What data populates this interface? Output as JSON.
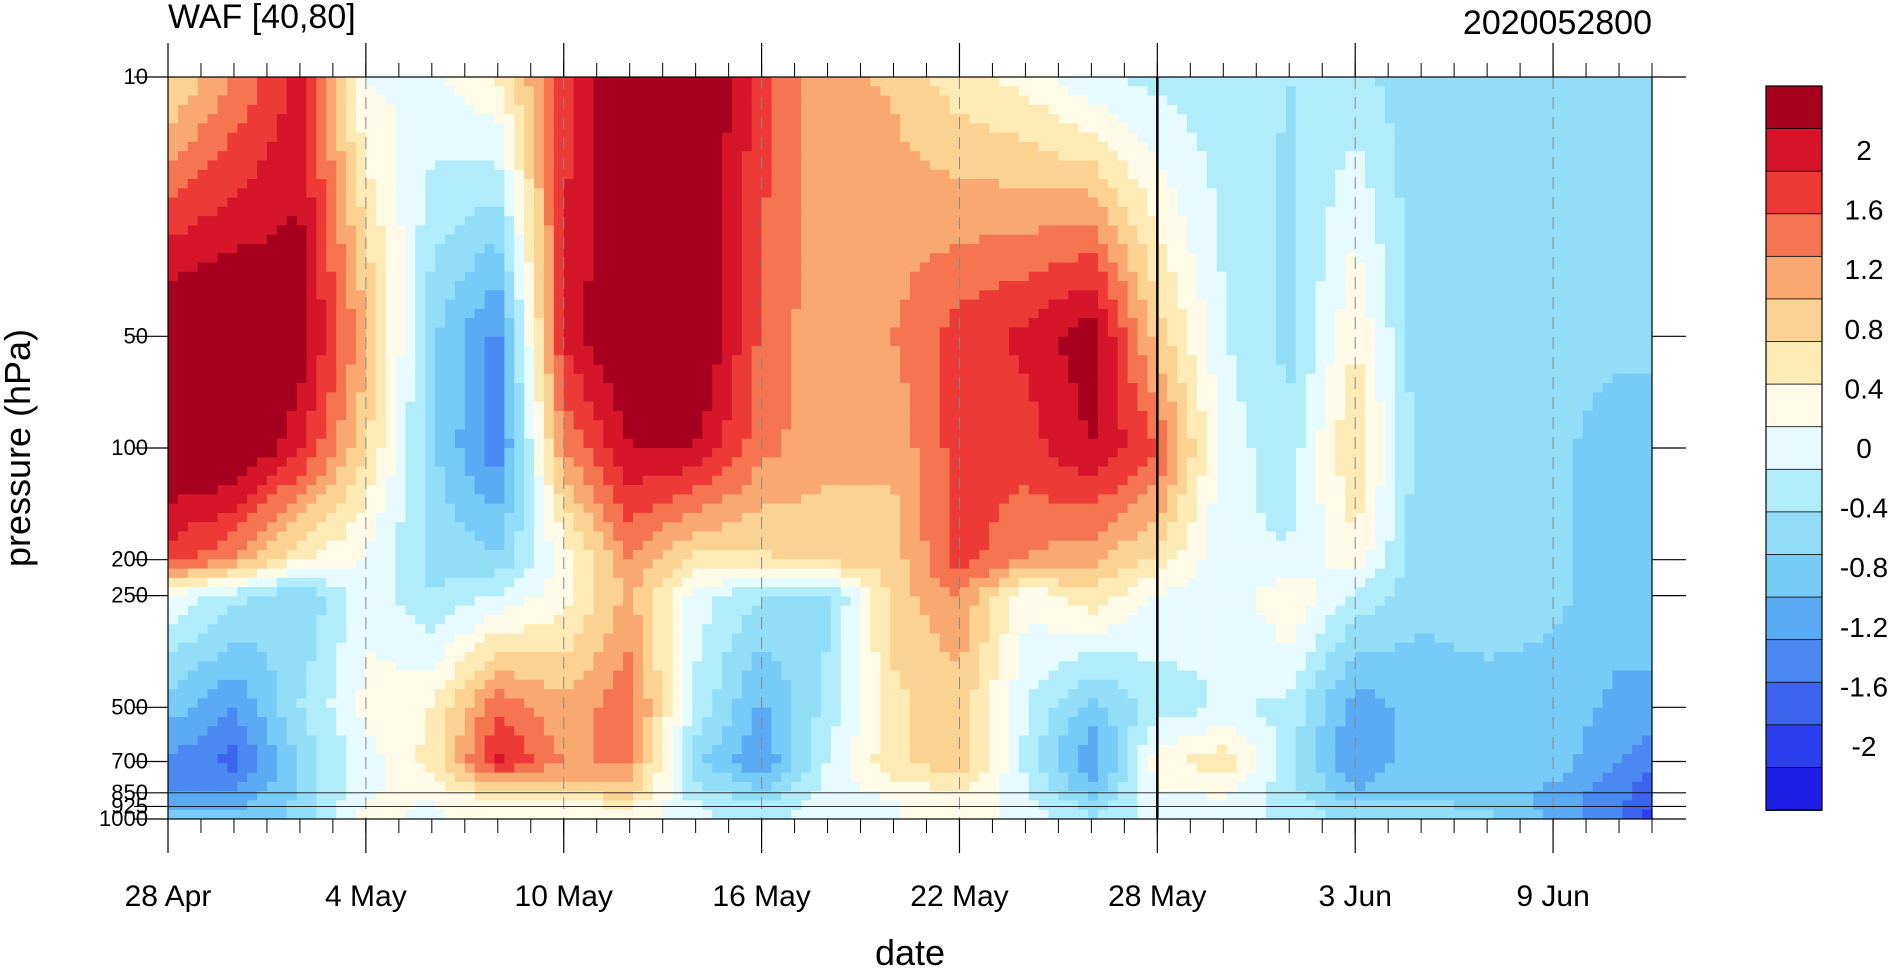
{
  "chart_data": {
    "type": "heatmap",
    "title": "WAF [40,80]",
    "subtitle": "2020052800",
    "xlabel": "date",
    "ylabel": "pressure (hPa)",
    "y_scale": "log",
    "y_reversed": true,
    "x_range": [
      "2020-04-28",
      "2020-06-12"
    ],
    "y_range": [
      1000,
      10
    ],
    "x_ticks": [
      {
        "date": "2020-04-28",
        "label": "28 Apr"
      },
      {
        "date": "2020-05-04",
        "label": "4 May"
      },
      {
        "date": "2020-05-10",
        "label": "10 May"
      },
      {
        "date": "2020-05-16",
        "label": "16 May"
      },
      {
        "date": "2020-05-22",
        "label": "22 May"
      },
      {
        "date": "2020-05-28",
        "label": "28 May"
      },
      {
        "date": "2020-06-03",
        "label": "3 Jun"
      },
      {
        "date": "2020-06-09",
        "label": "9 Jun"
      }
    ],
    "y_ticks": [
      {
        "value": 10,
        "label": "10"
      },
      {
        "value": 50,
        "label": "50"
      },
      {
        "value": 100,
        "label": "100"
      },
      {
        "value": 200,
        "label": "200"
      },
      {
        "value": 250,
        "label": "250"
      },
      {
        "value": 500,
        "label": "500"
      },
      {
        "value": 700,
        "label": "700"
      },
      {
        "value": 850,
        "label": "850"
      },
      {
        "value": 925,
        "label": "925"
      },
      {
        "value": 1000,
        "label": "1000"
      }
    ],
    "marker_line_date": "2020-05-28",
    "colorbar": {
      "colors": [
        "#1e1ee6",
        "#2a3ff0",
        "#3c64ee",
        "#4a88f2",
        "#5aaaf4",
        "#76cbf7",
        "#92def8",
        "#b0ecf9",
        "#e6fbff",
        "#fffbe6",
        "#fdeab4",
        "#fcd292",
        "#f9a870",
        "#f47550",
        "#ee3a36",
        "#d6152b",
        "#a6001e"
      ],
      "labels": [
        {
          "value": 2,
          "label": "2"
        },
        {
          "value": 1.6,
          "label": "1.6"
        },
        {
          "value": 1.2,
          "label": "1.2"
        },
        {
          "value": 0.8,
          "label": "0.8"
        },
        {
          "value": 0.4,
          "label": "0.4"
        },
        {
          "value": 0,
          "label": "0"
        },
        {
          "value": -0.4,
          "label": "-0.4"
        },
        {
          "value": -0.8,
          "label": "-0.8"
        },
        {
          "value": -1.2,
          "label": "-1.2"
        },
        {
          "value": -1.6,
          "label": "-1.6"
        },
        {
          "value": -2,
          "label": "-2"
        }
      ]
    },
    "levels": [
      10,
      50,
      100,
      200,
      250,
      500,
      700,
      850,
      925,
      1000
    ],
    "dates": [
      "2020-04-28",
      "2020-04-30",
      "2020-05-02",
      "2020-05-04",
      "2020-05-06",
      "2020-05-08",
      "2020-05-10",
      "2020-05-12",
      "2020-05-14",
      "2020-05-16",
      "2020-05-18",
      "2020-05-20",
      "2020-05-22",
      "2020-05-24",
      "2020-05-26",
      "2020-05-28",
      "2020-05-30",
      "2020-06-01",
      "2020-06-03",
      "2020-06-05",
      "2020-06-07",
      "2020-06-09",
      "2020-06-11",
      "2020-06-12"
    ],
    "values": [
      [
        0.6,
        1.2,
        1.8,
        0.1,
        0.1,
        0.4,
        1.6,
        2.4,
        2.4,
        1.6,
        1.0,
        0.9,
        0.5,
        0.3,
        -0.1,
        -0.2,
        -0.3,
        -0.4,
        -0.3,
        -0.6,
        -0.6,
        -0.6,
        -0.4,
        -0.4
      ],
      [
        2.4,
        2.4,
        2.2,
        1.0,
        -0.6,
        -1.3,
        1.8,
        2.4,
        2.4,
        1.4,
        1.0,
        1.2,
        1.6,
        1.8,
        2.2,
        0.8,
        -0.1,
        -0.5,
        0.4,
        -0.6,
        -0.6,
        -0.6,
        -0.6,
        -0.6
      ],
      [
        2.4,
        2.4,
        1.8,
        0.7,
        -0.6,
        -1.4,
        1.2,
        2.0,
        2.0,
        1.3,
        1.0,
        1.0,
        1.6,
        1.6,
        2.0,
        1.5,
        0.0,
        -0.3,
        0.7,
        -0.6,
        -0.6,
        -0.6,
        -0.8,
        -0.8
      ],
      [
        1.6,
        1.2,
        0.4,
        0.1,
        -0.5,
        -0.6,
        0.2,
        1.2,
        0.6,
        0.6,
        0.8,
        0.8,
        1.6,
        1.2,
        1.0,
        0.6,
        -0.1,
        -0.1,
        0.3,
        -0.6,
        -0.6,
        -0.6,
        -0.8,
        -0.8
      ],
      [
        0.1,
        -0.3,
        -0.7,
        0.1,
        -0.4,
        -0.1,
        0.3,
        1.0,
        0.0,
        -0.4,
        -0.5,
        0.8,
        1.2,
        0.2,
        0.6,
        0.1,
        -0.1,
        0.4,
        -0.2,
        -0.6,
        -0.5,
        -0.6,
        -0.8,
        -0.8
      ],
      [
        -0.8,
        -1.2,
        -0.4,
        0.2,
        0.4,
        1.4,
        1.0,
        1.4,
        -0.2,
        -1.0,
        -0.3,
        0.6,
        0.8,
        -0.1,
        -0.8,
        -0.3,
        -0.1,
        -0.2,
        -1.1,
        -0.8,
        -0.8,
        -0.8,
        -1.0,
        -1.0
      ],
      [
        -1.2,
        -1.6,
        -0.6,
        0.0,
        0.5,
        1.8,
        1.2,
        1.2,
        -0.6,
        -1.2,
        -0.1,
        0.6,
        0.9,
        -0.2,
        -1.2,
        0.3,
        0.6,
        -0.3,
        -1.2,
        -0.7,
        -0.8,
        -0.8,
        -1.2,
        -1.4
      ],
      [
        -1.2,
        -1.2,
        -0.6,
        0.1,
        0.2,
        0.6,
        0.7,
        0.8,
        -0.3,
        -0.6,
        0.0,
        0.2,
        0.4,
        -0.1,
        -0.8,
        0.1,
        0.2,
        -0.3,
        -0.9,
        -0.7,
        -0.8,
        -1.0,
        -1.4,
        -1.6
      ],
      [
        -1.0,
        -1.0,
        -0.6,
        0.2,
        0.1,
        0.3,
        0.3,
        0.4,
        -0.1,
        -0.3,
        0.0,
        0.1,
        0.4,
        0.0,
        -0.5,
        0.0,
        0.0,
        -0.2,
        -0.6,
        -0.6,
        -0.7,
        -1.0,
        -1.4,
        -1.8
      ],
      [
        -0.8,
        -0.8,
        -0.6,
        0.2,
        0.1,
        0.2,
        0.2,
        0.3,
        -0.1,
        -0.2,
        0.0,
        0.1,
        0.4,
        0.0,
        -0.4,
        0.0,
        0.0,
        -0.2,
        -0.5,
        -0.5,
        -0.6,
        -1.0,
        -1.4,
        -1.8
      ]
    ]
  }
}
